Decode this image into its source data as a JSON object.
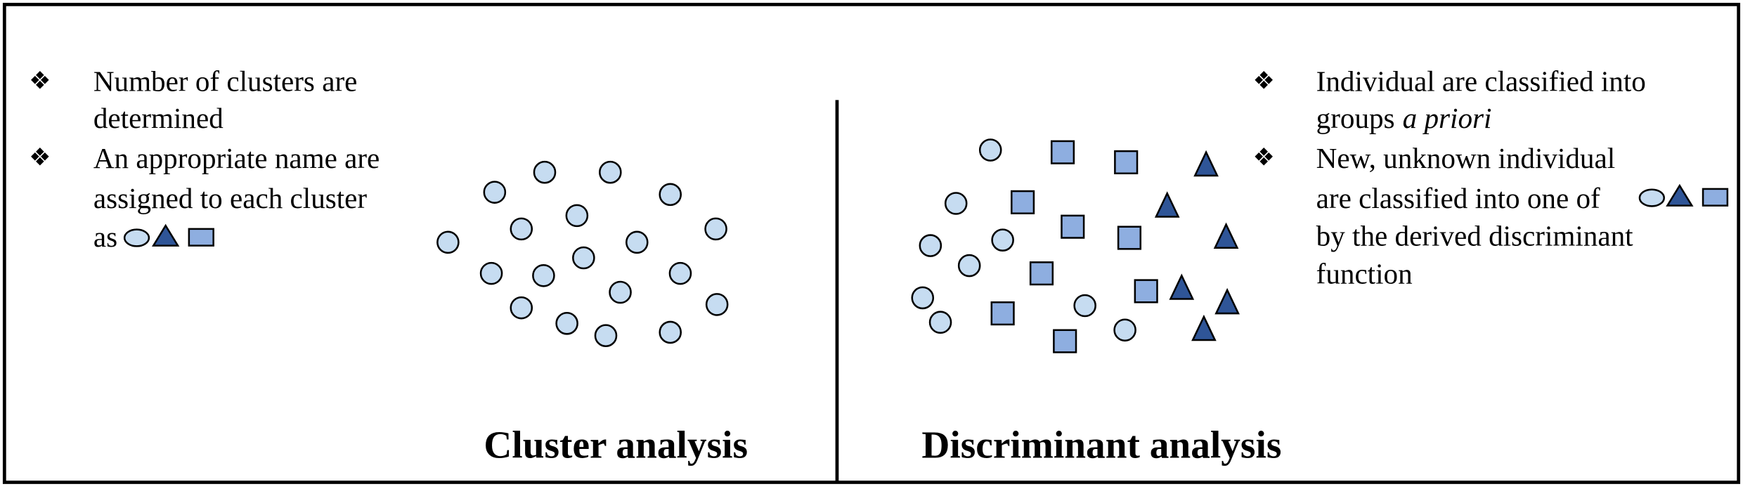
{
  "bullet_symbol": "❖",
  "left": {
    "bullets": [
      {
        "lines": [
          "Number of clusters are",
          "determined"
        ]
      },
      {
        "lines": [
          "An appropriate name are",
          "assigned to each cluster",
          "as"
        ]
      }
    ],
    "title": "Cluster analysis"
  },
  "right": {
    "bullets": [
      {
        "lines": [
          "Individual are classified into",
          "groups"
        ],
        "emphasis": "a priori"
      },
      {
        "lines": [
          "New, unknown individual",
          "are classified into one of",
          "by the derived discriminant",
          "function"
        ]
      }
    ],
    "title": "Discriminant analysis"
  }
}
